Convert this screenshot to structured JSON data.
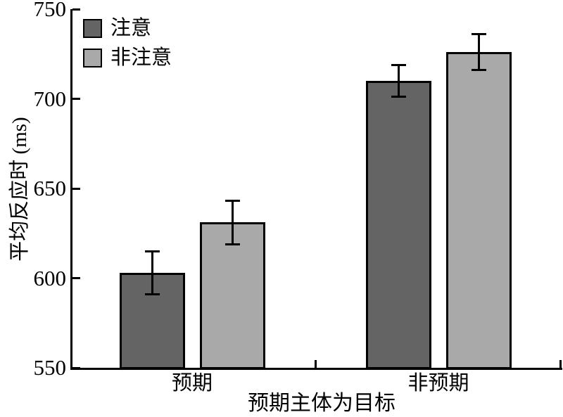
{
  "chart_data": {
    "type": "bar",
    "title": "",
    "categories": [
      "预期",
      "非预期"
    ],
    "series": [
      {
        "name": "注意",
        "color": "#646464",
        "values": [
          603,
          710
        ],
        "errors": [
          12,
          9
        ]
      },
      {
        "name": "非注意",
        "color": "#a9a9a9",
        "values": [
          631,
          726
        ],
        "errors": [
          12,
          10
        ]
      }
    ],
    "xlabel": "预期主体为目标",
    "ylabel": "平均反应时 (ms)",
    "ylim": [
      550,
      750
    ],
    "yticks": [
      550,
      600,
      650,
      700,
      750
    ],
    "grid": false,
    "legend_position": "top-left",
    "bar_edge_color": "#000000",
    "error_bar_color": "#000000",
    "background_color": "#ffffff"
  }
}
